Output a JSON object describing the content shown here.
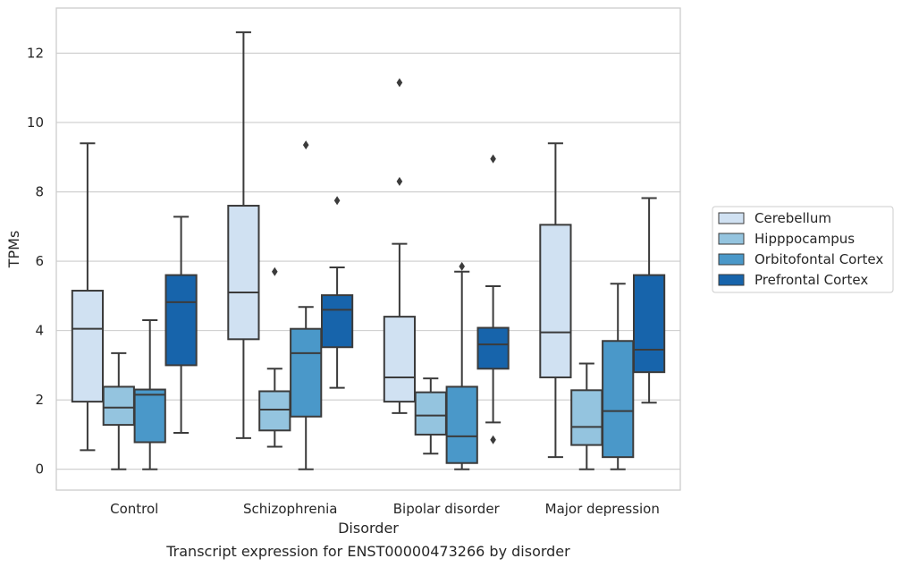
{
  "chart_data": {
    "type": "box",
    "caption": "Transcript expression for ENST00000473266 by disorder",
    "xlabel": "Disorder",
    "ylabel": "TPMs",
    "ylim": [
      -0.6,
      13.3
    ],
    "yticks": [
      0,
      2,
      4,
      6,
      8,
      10,
      12
    ],
    "ytick_labels": [
      "0",
      "2",
      "4",
      "6",
      "8",
      "10",
      "12"
    ],
    "grid": "horizontal",
    "legend_placement": "right",
    "categories": [
      "Control",
      "Schizophrenia",
      "Bipolar disorder",
      "Major depression"
    ],
    "series": [
      {
        "name": "Cerebellum",
        "color": "#d0e1f2",
        "boxes": [
          {
            "whislo": 0.55,
            "q1": 1.95,
            "med": 4.05,
            "q3": 5.15,
            "whishi": 9.4,
            "fliers": []
          },
          {
            "whislo": 0.9,
            "q1": 3.75,
            "med": 5.1,
            "q3": 7.6,
            "whishi": 12.6,
            "fliers": []
          },
          {
            "whislo": 1.62,
            "q1": 1.95,
            "med": 2.65,
            "q3": 4.4,
            "whishi": 6.5,
            "fliers": [
              8.3,
              11.15
            ]
          },
          {
            "whislo": 0.35,
            "q1": 2.65,
            "med": 3.95,
            "q3": 7.05,
            "whishi": 9.4,
            "fliers": []
          }
        ]
      },
      {
        "name": "Hipppocampus",
        "color": "#94c4df",
        "boxes": [
          {
            "whislo": 0.0,
            "q1": 1.28,
            "med": 1.78,
            "q3": 2.38,
            "whishi": 3.35,
            "fliers": []
          },
          {
            "whislo": 0.65,
            "q1": 1.12,
            "med": 1.72,
            "q3": 2.25,
            "whishi": 2.9,
            "fliers": [
              5.7
            ]
          },
          {
            "whislo": 0.45,
            "q1": 1.0,
            "med": 1.55,
            "q3": 2.22,
            "whishi": 2.62,
            "fliers": []
          },
          {
            "whislo": 0.0,
            "q1": 0.7,
            "med": 1.22,
            "q3": 2.28,
            "whishi": 3.05,
            "fliers": []
          }
        ]
      },
      {
        "name": "Orbitofontal Cortex",
        "color": "#4a98c9",
        "boxes": [
          {
            "whislo": 0.0,
            "q1": 0.78,
            "med": 2.15,
            "q3": 2.3,
            "whishi": 4.3,
            "fliers": []
          },
          {
            "whislo": 0.0,
            "q1": 1.52,
            "med": 3.35,
            "q3": 4.05,
            "whishi": 4.68,
            "fliers": [
              9.35
            ]
          },
          {
            "whislo": 0.0,
            "q1": 0.18,
            "med": 0.95,
            "q3": 2.38,
            "whishi": 5.7,
            "fliers": [
              5.85
            ]
          },
          {
            "whislo": 0.0,
            "q1": 0.35,
            "med": 1.68,
            "q3": 3.7,
            "whishi": 5.35,
            "fliers": []
          }
        ]
      },
      {
        "name": "Prefrontal Cortex",
        "color": "#1764ab",
        "boxes": [
          {
            "whislo": 1.05,
            "q1": 3.0,
            "med": 4.82,
            "q3": 5.6,
            "whishi": 7.28,
            "fliers": []
          },
          {
            "whislo": 2.35,
            "q1": 3.52,
            "med": 4.6,
            "q3": 5.02,
            "whishi": 5.82,
            "fliers": [
              7.75
            ]
          },
          {
            "whislo": 1.35,
            "q1": 2.9,
            "med": 3.6,
            "q3": 4.08,
            "whishi": 5.28,
            "fliers": [
              0.85,
              8.95
            ]
          },
          {
            "whislo": 1.92,
            "q1": 2.8,
            "med": 3.45,
            "q3": 5.6,
            "whishi": 7.82,
            "fliers": []
          }
        ]
      }
    ]
  }
}
